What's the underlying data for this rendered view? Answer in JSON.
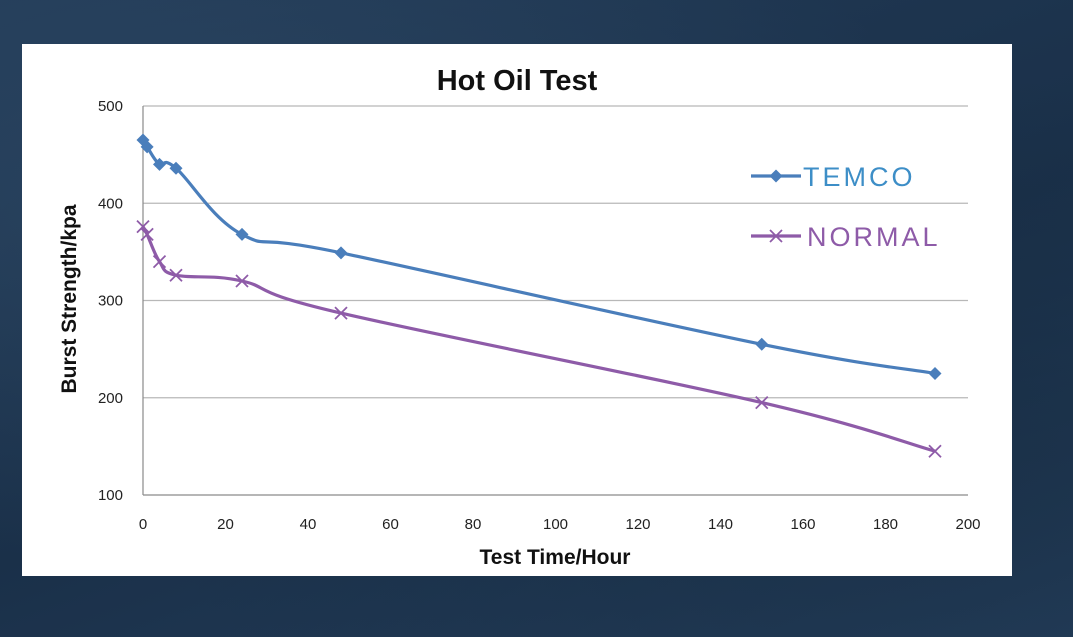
{
  "chart_data": {
    "type": "line",
    "title": "Hot Oil Test",
    "xlabel": "Test Time/Hour",
    "ylabel": "Burst Strength/kpa",
    "xlim": [
      0,
      200
    ],
    "ylim": [
      100,
      500
    ],
    "xticks": [
      0,
      20,
      40,
      60,
      80,
      100,
      120,
      140,
      160,
      180,
      200
    ],
    "yticks": [
      100,
      200,
      300,
      400,
      500
    ],
    "grid": "horizontal",
    "legend_position": "right",
    "series": [
      {
        "name": "TEMCO",
        "color": "#4a7ebb",
        "marker": "diamond",
        "x": [
          0,
          1,
          4,
          8,
          24,
          48,
          150,
          192
        ],
        "y": [
          465,
          458,
          440,
          436,
          368,
          349,
          255,
          225
        ]
      },
      {
        "name": "NORMAL",
        "color": "#8e5ba8",
        "marker": "x",
        "x": [
          0,
          1,
          4,
          8,
          24,
          48,
          150,
          192
        ],
        "y": [
          376,
          368,
          340,
          326,
          320,
          287,
          195,
          145
        ]
      }
    ]
  }
}
